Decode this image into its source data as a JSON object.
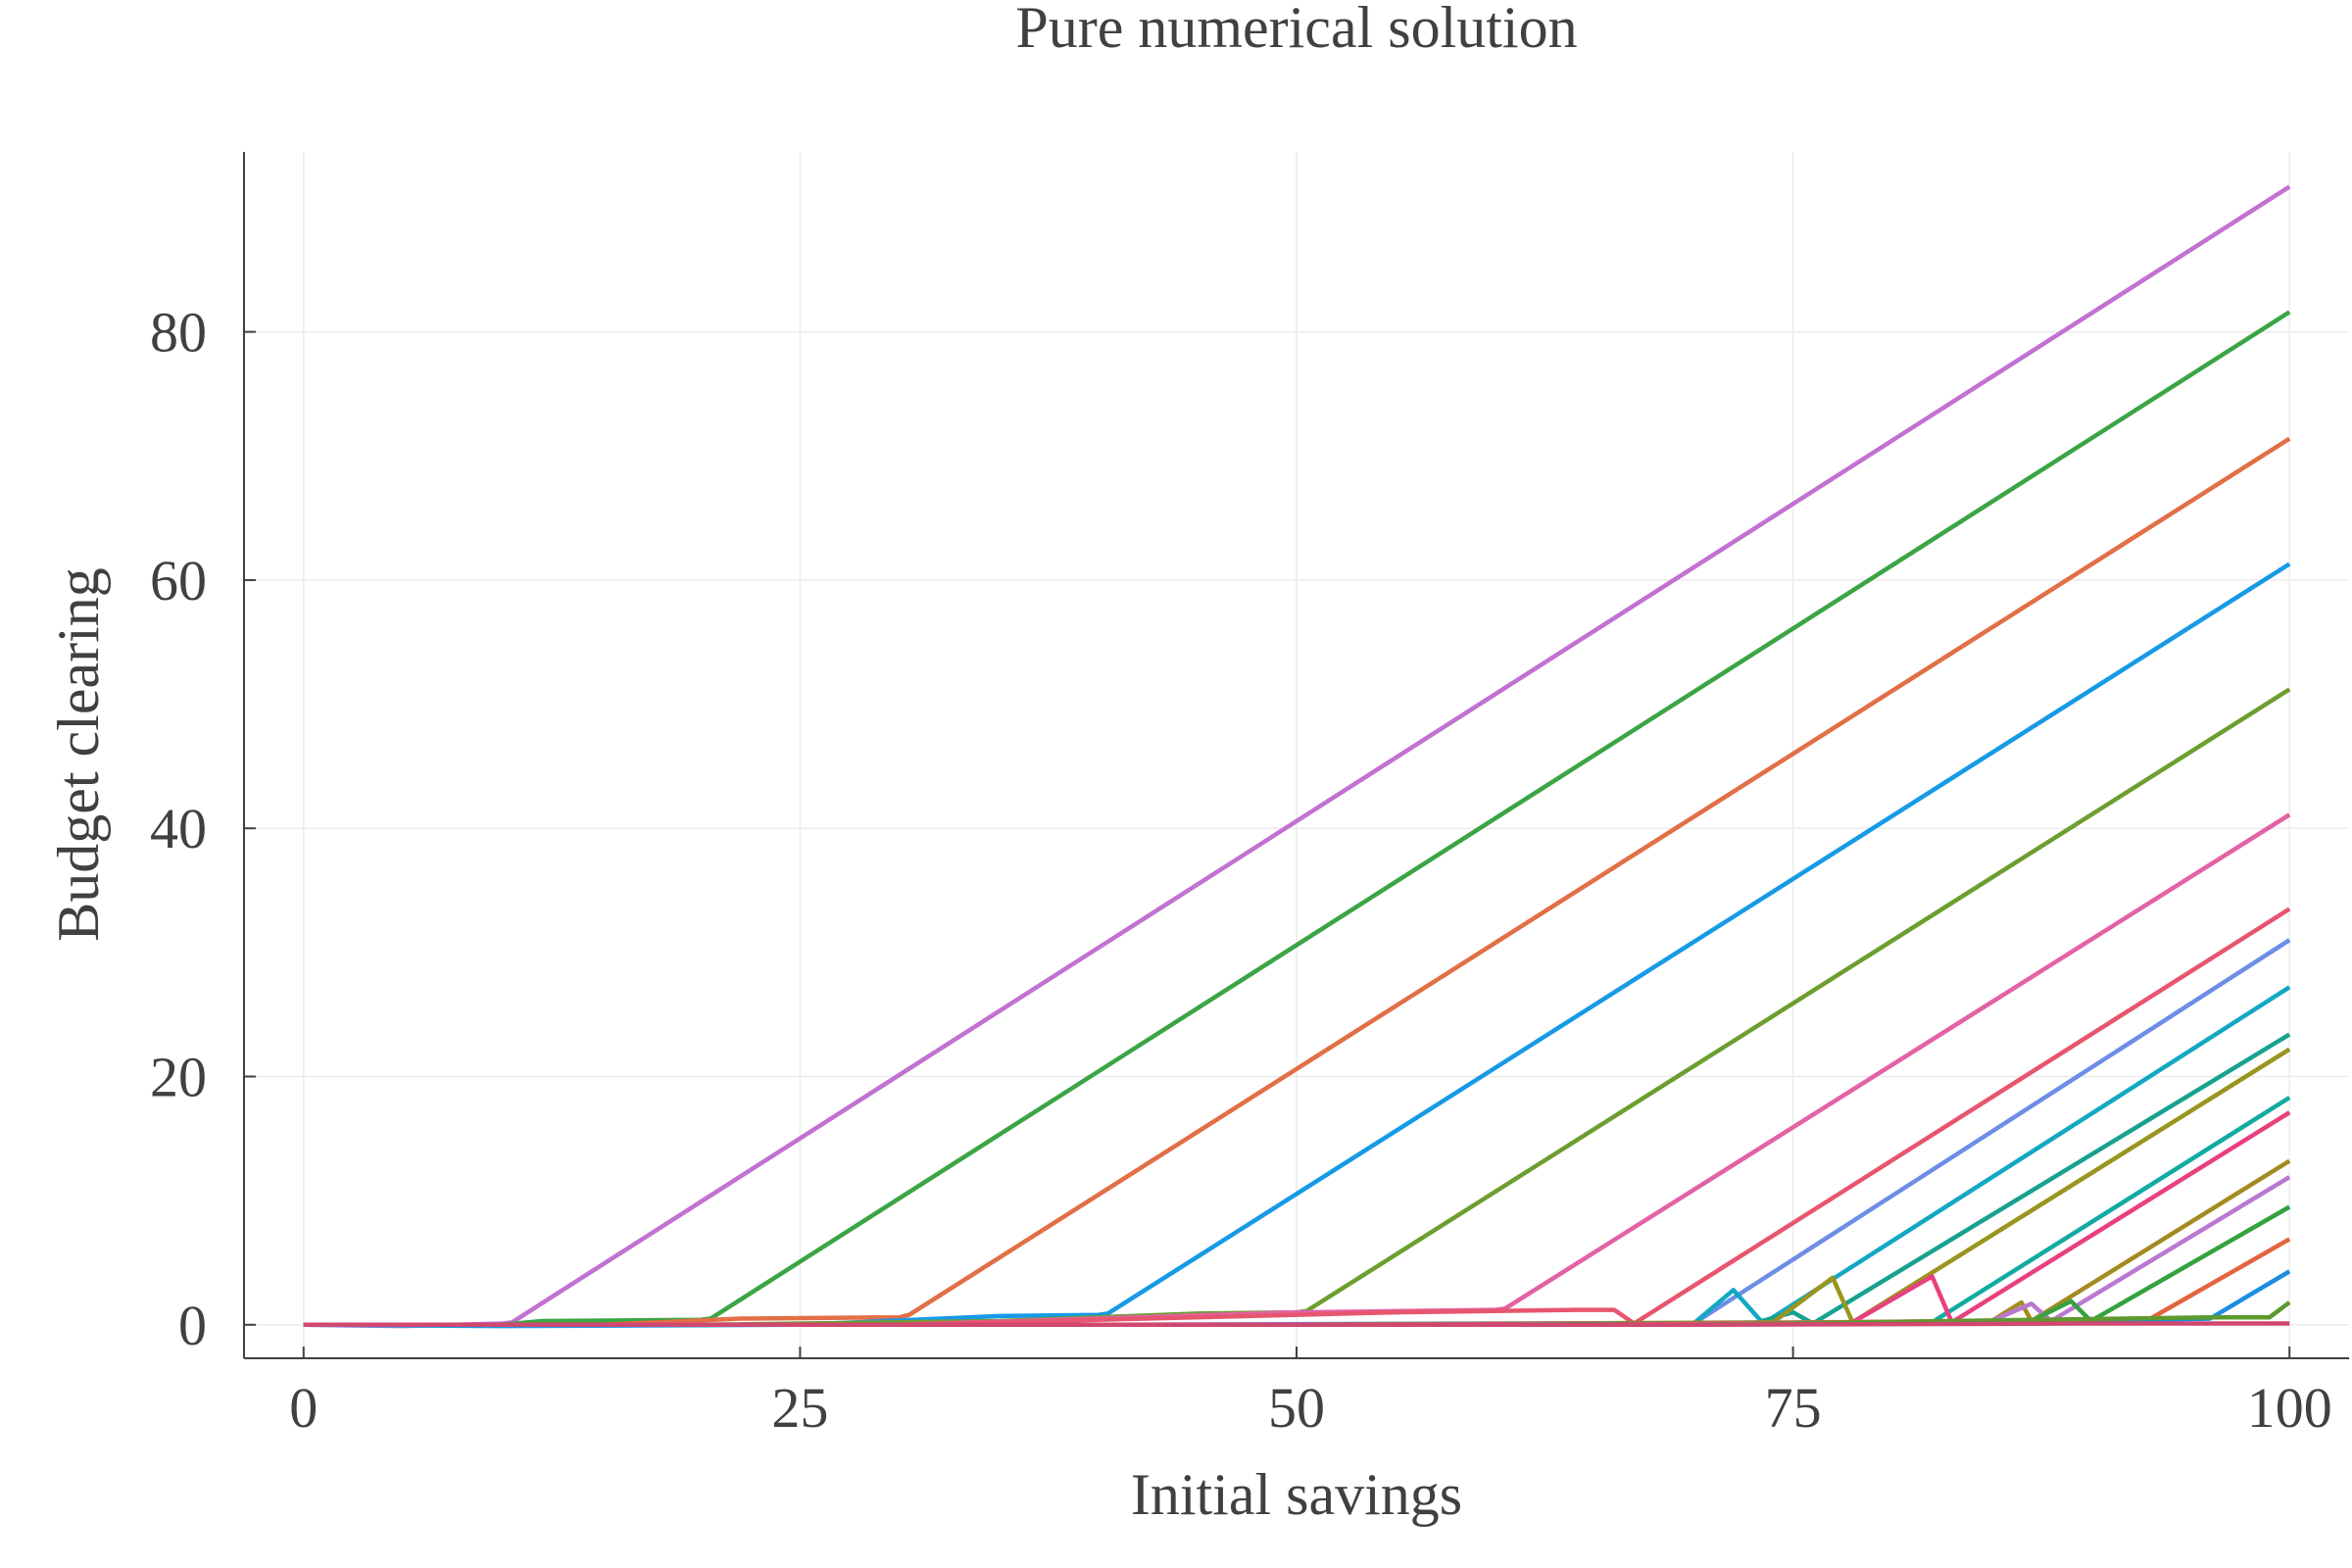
{
  "chart_data": {
    "type": "line",
    "title": "Pure numerical solution",
    "xlabel": "Initial savings",
    "ylabel": "Budget clearing",
    "xlim": [
      -3,
      103
    ],
    "ylim": [
      -2.7,
      94.5
    ],
    "xticks": [
      0,
      25,
      50,
      75,
      100
    ],
    "xtick_labels": [
      "0",
      "25",
      "50",
      "75",
      "100"
    ],
    "yticks": [
      0,
      20,
      40,
      60,
      80
    ],
    "ytick_labels": [
      "0",
      "20",
      "40",
      "60",
      "80"
    ],
    "grid": true,
    "legend": "none",
    "series": [
      {
        "color": "#c271d2",
        "points": [
          [
            0,
            0
          ],
          [
            5,
            -0.1
          ],
          [
            10,
            0.1
          ],
          [
            10.5,
            0.2
          ],
          [
            100,
            91.7
          ]
        ]
      },
      {
        "color": "#3ba545",
        "points": [
          [
            0,
            0
          ],
          [
            10,
            0
          ],
          [
            12,
            0.3
          ],
          [
            20,
            0.4
          ],
          [
            20.5,
            0.5
          ],
          [
            100,
            81.6
          ]
        ]
      },
      {
        "color": "#e26f46",
        "points": [
          [
            0,
            0
          ],
          [
            15,
            0
          ],
          [
            22,
            0.5
          ],
          [
            30,
            0.6
          ],
          [
            30.5,
            0.8
          ],
          [
            100,
            71.4
          ]
        ]
      },
      {
        "color": "#179ae6",
        "points": [
          [
            0,
            0
          ],
          [
            10,
            -0.1
          ],
          [
            25,
            0
          ],
          [
            35,
            0.7
          ],
          [
            40,
            0.8
          ],
          [
            40.5,
            0.9
          ],
          [
            100,
            61.3
          ]
        ]
      },
      {
        "color": "#6d9e30",
        "points": [
          [
            0,
            0
          ],
          [
            20,
            0
          ],
          [
            35,
            0.3
          ],
          [
            45,
            0.9
          ],
          [
            50,
            1.0
          ],
          [
            50.5,
            1.1
          ],
          [
            100,
            51.2
          ]
        ]
      },
      {
        "color": "#e362a6",
        "points": [
          [
            0,
            0
          ],
          [
            30,
            0
          ],
          [
            50,
            1.0
          ],
          [
            55,
            1.1
          ],
          [
            60,
            1.2
          ],
          [
            60.5,
            1.3
          ],
          [
            100,
            41.1
          ]
        ]
      },
      {
        "color": "#e7566e",
        "points": [
          [
            0,
            0
          ],
          [
            30,
            0
          ],
          [
            55,
            1.0
          ],
          [
            64,
            1.2
          ],
          [
            66,
            1.2
          ],
          [
            67,
            0.1
          ],
          [
            100,
            33.5
          ]
        ]
      },
      {
        "color": "#6d8ee7",
        "points": [
          [
            0,
            0
          ],
          [
            40,
            0
          ],
          [
            60,
            0.1
          ],
          [
            70,
            0.1
          ],
          [
            100,
            31.0
          ]
        ]
      },
      {
        "color": "#13a8c2",
        "points": [
          [
            0,
            0
          ],
          [
            50,
            0
          ],
          [
            70,
            0.1
          ],
          [
            72,
            2.8
          ],
          [
            73.5,
            0.1
          ],
          [
            100,
            27.2
          ]
        ]
      },
      {
        "color": "#17a28f",
        "points": [
          [
            0,
            0
          ],
          [
            50,
            0
          ],
          [
            73,
            0.1
          ],
          [
            75,
            1.0
          ],
          [
            76,
            0.1
          ],
          [
            100,
            23.4
          ]
        ]
      },
      {
        "color": "#9a951f",
        "points": [
          [
            0,
            0
          ],
          [
            50,
            0
          ],
          [
            74,
            0.2
          ],
          [
            77,
            3.8
          ],
          [
            78,
            0.2
          ],
          [
            100,
            22.2
          ]
        ]
      },
      {
        "color": "#12aba2",
        "points": [
          [
            0,
            0
          ],
          [
            55,
            0
          ],
          [
            77,
            0.1
          ],
          [
            82,
            0.2
          ],
          [
            100,
            18.3
          ]
        ]
      },
      {
        "color": "#e8407f",
        "points": [
          [
            0,
            0
          ],
          [
            55,
            0
          ],
          [
            78,
            0.2
          ],
          [
            82,
            3.9
          ],
          [
            83,
            0.2
          ],
          [
            100,
            17.1
          ]
        ]
      },
      {
        "color": "#a38b21",
        "points": [
          [
            0,
            0
          ],
          [
            60,
            0
          ],
          [
            82,
            0.2
          ],
          [
            85,
            0.3
          ],
          [
            86.5,
            1.8
          ],
          [
            87,
            0.3
          ],
          [
            100,
            13.2
          ]
        ]
      },
      {
        "color": "#ba78d2",
        "points": [
          [
            0,
            0
          ],
          [
            60,
            0
          ],
          [
            85,
            0.3
          ],
          [
            87,
            1.7
          ],
          [
            88,
            0.3
          ],
          [
            100,
            11.9
          ]
        ]
      },
      {
        "color": "#34a23f",
        "points": [
          [
            0,
            0
          ],
          [
            60,
            0
          ],
          [
            87,
            0.3
          ],
          [
            89,
            1.9
          ],
          [
            90,
            0.3
          ],
          [
            100,
            9.5
          ]
        ]
      },
      {
        "color": "#e5643f",
        "points": [
          [
            0,
            0
          ],
          [
            65,
            0
          ],
          [
            90,
            0.4
          ],
          [
            93,
            0.5
          ],
          [
            100,
            6.9
          ]
        ]
      },
      {
        "color": "#1a8ee0",
        "points": [
          [
            0,
            0
          ],
          [
            70,
            0
          ],
          [
            93,
            0.4
          ],
          [
            96,
            0.5
          ],
          [
            100,
            4.3
          ]
        ]
      },
      {
        "color": "#5d9a2e",
        "points": [
          [
            0,
            0
          ],
          [
            70,
            0
          ],
          [
            96,
            0.6
          ],
          [
            99,
            0.6
          ],
          [
            100,
            1.8
          ]
        ]
      },
      {
        "color": "#d0476f",
        "points": [
          [
            0,
            0
          ],
          [
            70,
            0
          ],
          [
            90,
            0.1
          ],
          [
            100,
            0.1
          ]
        ]
      }
    ]
  }
}
